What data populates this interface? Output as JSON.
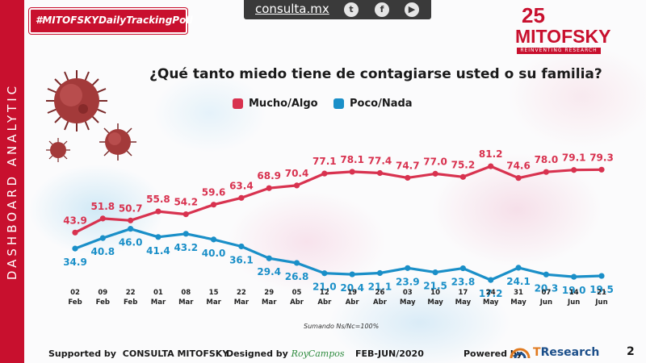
{
  "sidebar": {
    "label": "DASHBOARD ANALYTIC"
  },
  "topbar": {
    "site": "consulta.mx",
    "icons": [
      "twitter-icon",
      "facebook-icon",
      "youtube-icon"
    ]
  },
  "hashtag": "#MITOFSKYDailyTrackingPoll",
  "logo": {
    "number": "25",
    "name": "MITOFSKY",
    "tagline": "REINVENTING RESEARCH"
  },
  "colors": {
    "red": "#d8324f",
    "blue": "#1a8fc8",
    "brand": "#c8102e"
  },
  "chart_data": {
    "type": "line",
    "title": "¿Qué tanto miedo tiene de contagiarse usted o su familia?",
    "categories": [
      {
        "day": "02",
        "month": "Feb"
      },
      {
        "day": "09",
        "month": "Feb"
      },
      {
        "day": "22",
        "month": "Feb"
      },
      {
        "day": "01",
        "month": "Mar"
      },
      {
        "day": "08",
        "month": "Mar"
      },
      {
        "day": "15",
        "month": "Mar"
      },
      {
        "day": "22",
        "month": "Mar"
      },
      {
        "day": "29",
        "month": "Mar"
      },
      {
        "day": "05",
        "month": "Abr"
      },
      {
        "day": "12",
        "month": "Abr"
      },
      {
        "day": "19",
        "month": "Abr"
      },
      {
        "day": "26",
        "month": "Abr"
      },
      {
        "day": "03",
        "month": "May"
      },
      {
        "day": "10",
        "month": "May"
      },
      {
        "day": "17",
        "month": "May"
      },
      {
        "day": "24",
        "month": "May"
      },
      {
        "day": "31",
        "month": "May"
      },
      {
        "day": "07",
        "month": "Jun"
      },
      {
        "day": "14",
        "month": "Jun"
      },
      {
        "day": "21",
        "month": "Jun"
      }
    ],
    "series": [
      {
        "name": "Mucho/Algo",
        "color": "#d8324f",
        "values": [
          43.9,
          51.8,
          50.7,
          55.8,
          54.2,
          59.6,
          63.4,
          68.9,
          70.4,
          77.1,
          78.1,
          77.4,
          74.7,
          77.0,
          75.2,
          81.2,
          74.6,
          78.0,
          79.1,
          79.3
        ]
      },
      {
        "name": "Poco/Nada",
        "color": "#1a8fc8",
        "values": [
          34.9,
          40.8,
          46.0,
          41.4,
          43.2,
          40.0,
          36.1,
          29.4,
          26.8,
          21.0,
          20.4,
          21.1,
          23.9,
          21.5,
          23.8,
          17.2,
          24.1,
          20.3,
          19.0,
          19.5
        ]
      }
    ],
    "legend": "top",
    "grid": false
  },
  "note": "Sumando Ns/Nc=100%",
  "footer": {
    "supported_prefix": "Supported by",
    "supported_name": "CONSULTA MITOFSKY",
    "designed_prefix": "Designed by",
    "designer": "RoyCampos",
    "period": "FEB-JUN/2020",
    "powered_prefix": "Powered by",
    "powered_name_t": "T",
    "powered_name_rest": "Research"
  },
  "page_number": "2"
}
